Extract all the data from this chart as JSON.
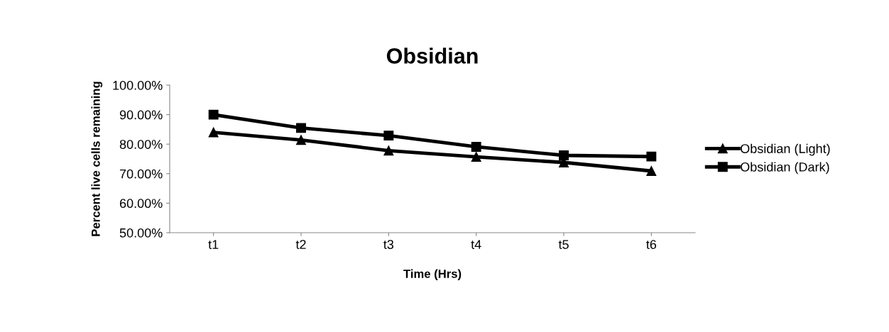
{
  "chart_data": {
    "type": "line",
    "title": "Obsidian",
    "xlabel": "Time (Hrs)",
    "ylabel": "Percent live cells remaining",
    "categories": [
      "t1",
      "t2",
      "t3",
      "t4",
      "t5",
      "t6"
    ],
    "series": [
      {
        "name": "Obsidian (Light)",
        "color": "#000000",
        "marker": "triangle",
        "values": [
          84.0,
          81.4,
          77.8,
          75.7,
          73.8,
          70.9
        ]
      },
      {
        "name": "Obsidian (Dark)",
        "color": "#000000",
        "marker": "square",
        "values": [
          90.0,
          85.5,
          82.9,
          79.1,
          76.2,
          75.8
        ]
      }
    ],
    "ylim": [
      50,
      100
    ],
    "yticks": [
      {
        "value": 50,
        "label": "50.00%"
      },
      {
        "value": 60,
        "label": "60.00%"
      },
      {
        "value": 70,
        "label": "70.00%"
      },
      {
        "value": 80,
        "label": "80.00%"
      },
      {
        "value": 90,
        "label": "90.00%"
      },
      {
        "value": 100,
        "label": "100.00%"
      }
    ],
    "grid": false,
    "legend": "right",
    "line_style": "solid"
  }
}
